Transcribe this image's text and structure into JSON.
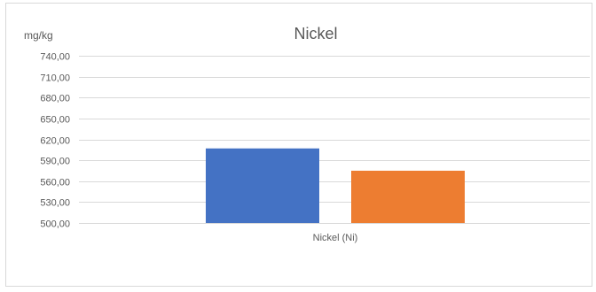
{
  "chart_data": {
    "type": "bar",
    "title": "Nickel",
    "unit_label": "mg/kg",
    "categories": [
      "Nickel (Ni)"
    ],
    "series": [
      {
        "values": [
          607
        ],
        "color": "#4472c4"
      },
      {
        "values": [
          575
        ],
        "color": "#ed7d31"
      }
    ],
    "ylim": [
      500,
      740
    ],
    "yticks": [
      "500,00",
      "530,00",
      "560,00",
      "590,00",
      "620,00",
      "650,00",
      "680,00",
      "710,00",
      "740,00"
    ],
    "ytick_values": [
      500,
      530,
      560,
      590,
      620,
      650,
      680,
      710,
      740
    ],
    "grid": true,
    "legend": "none"
  }
}
